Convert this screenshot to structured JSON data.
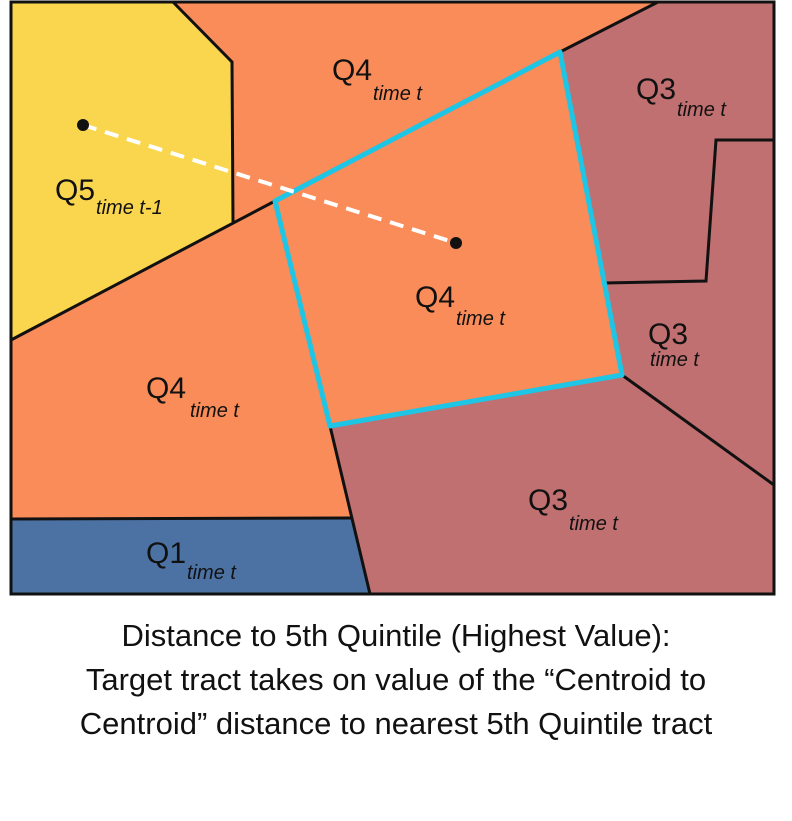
{
  "map": {
    "colors": {
      "q5": "#FAD64E",
      "q4": "#F98C58",
      "q3": "#C07070",
      "q1": "#4C72A4",
      "target_outline": "#1EC5E5",
      "distance_line": "#FFFFFF",
      "border": "#111111"
    },
    "labels": {
      "q5_main": "Q5",
      "q5_sub": "time t-1",
      "q4_top_main": "Q4",
      "q4_top_sub": "time t",
      "q4_target_main": "Q4",
      "q4_target_sub": "time t",
      "q4_left_main": "Q4",
      "q4_left_sub": "time t",
      "q3_top_main": "Q3",
      "q3_top_sub": "time t",
      "q3_mid_main": "Q3",
      "q3_mid_sub": "time t",
      "q3_bottom_main": "Q3",
      "q3_bottom_sub": "time t",
      "q1_main": "Q1",
      "q1_sub": "time t"
    }
  },
  "caption": {
    "line1": "Distance to 5th Quintile (Highest Value):",
    "line2": "Target tract takes on value of the “Centroid to",
    "line3": "Centroid” distance to nearest 5th Quintile tract"
  }
}
